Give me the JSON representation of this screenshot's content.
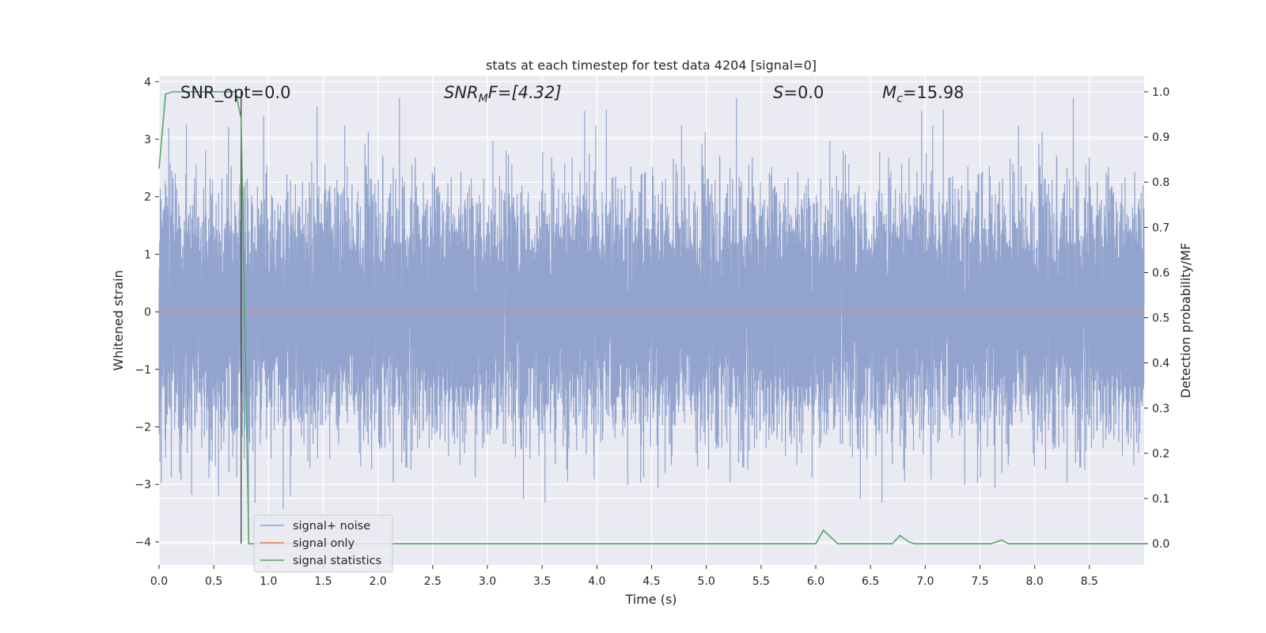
{
  "chart_data": {
    "type": "line",
    "title": "stats at each timestep for test data 4204 [signal=0]",
    "xlabel": "Time (s)",
    "ylabel_left": "Whitened strain",
    "ylabel_right": "Detection probability/MF",
    "xlim": [
      0.0,
      9.0
    ],
    "ylim_left": [
      -4.4,
      4.1
    ],
    "ylim_right": [
      -0.047,
      1.035
    ],
    "xticks": [
      "0.0",
      "0.5",
      "1.0",
      "1.5",
      "2.0",
      "2.5",
      "3.0",
      "3.5",
      "4.0",
      "4.5",
      "5.0",
      "5.5",
      "6.0",
      "6.5",
      "7.0",
      "7.5",
      "8.0",
      "8.5"
    ],
    "yticks_left": [
      "−4",
      "−3",
      "−2",
      "−1",
      "0",
      "1",
      "2",
      "3",
      "4"
    ],
    "yticks_right": [
      "0.0",
      "0.1",
      "0.2",
      "0.3",
      "0.4",
      "0.5",
      "0.6",
      "0.7",
      "0.8",
      "0.9",
      "1.0"
    ],
    "grid": true,
    "legend_location": "lower-left",
    "annotations": {
      "snr_opt": "SNR_opt=0.0",
      "snr_mf_prefix": "SNR",
      "snr_mf_sub": "M",
      "snr_mf_suffix": "F=[4.32]",
      "s_var": "S",
      "s_rest": "=0.0",
      "mc_var": "M",
      "mc_sub": "c",
      "mc_rest": "=15.98"
    },
    "marker_line_x": 0.75,
    "series": [
      {
        "name": "signal+ noise",
        "color": "#8da0cb",
        "kind": "noise",
        "amplitude_rms": 0.98,
        "peak_max": 3.72,
        "peak_min": -4.02,
        "samples_per_second": 1700
      },
      {
        "name": "signal only",
        "color": "#dd8452",
        "kind": "line",
        "x": [
          0.0,
          9.0
        ],
        "y": [
          0.0,
          0.0
        ]
      },
      {
        "name": "signal statistics",
        "color": "#55a868",
        "kind": "line",
        "axis": "right",
        "x": [
          0.0,
          0.06,
          0.12,
          0.2,
          0.3,
          0.4,
          0.5,
          0.6,
          0.7,
          0.75,
          0.82,
          0.9,
          1.5,
          2.0,
          3.0,
          4.0,
          5.0,
          5.5,
          6.0,
          6.07,
          6.2,
          6.5,
          6.7,
          6.77,
          6.85,
          6.9,
          7.2,
          7.5,
          7.6,
          7.7,
          7.76,
          8.0,
          8.5,
          9.0
        ],
        "y": [
          0.83,
          0.995,
          1.0,
          1.0,
          1.0,
          1.0,
          1.0,
          1.0,
          1.0,
          0.94,
          0.0,
          0.0,
          0.0,
          0.0,
          0.0,
          0.0,
          0.0,
          0.0,
          0.0,
          0.03,
          0.0,
          0.0,
          0.0,
          0.018,
          0.004,
          0.0,
          0.0,
          0.0,
          0.0,
          0.008,
          0.0,
          0.0,
          0.0,
          0.0
        ]
      }
    ]
  }
}
